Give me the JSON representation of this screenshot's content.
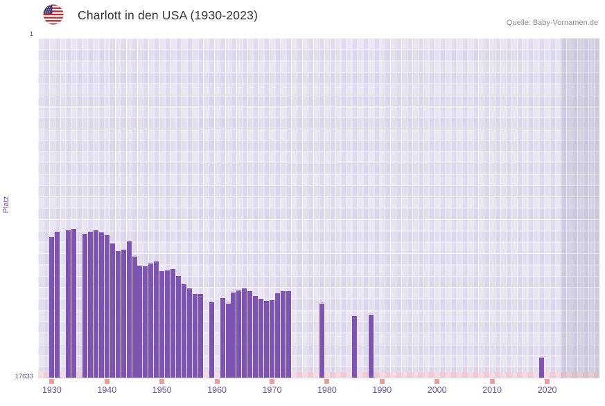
{
  "header": {
    "title": "Charlott in den USA (1930-2023)",
    "source": "Quelle: Baby-Vornamen.de",
    "flag_icon": "us-flag-icon"
  },
  "chart_data": {
    "type": "bar",
    "title": "Charlott in den USA (1930-2023)",
    "xlabel": "",
    "ylabel": "Platz",
    "y_axis": {
      "min": 1,
      "max": 17633,
      "top_label": "1",
      "bottom_label": "17633",
      "inverted": true
    },
    "x_ticks": [
      1930,
      1940,
      1950,
      1960,
      1970,
      1980,
      1990,
      2000,
      2010,
      2020
    ],
    "x_range_years": [
      1930,
      2023
    ],
    "x_domain": [
      1927.5,
      2029.5
    ],
    "no_data_band": {
      "start_year": 2022.5,
      "end_year": 2029.5
    },
    "grid": true,
    "legend": "none",
    "bars": [
      {
        "year": 1930,
        "rank": 10350
      },
      {
        "year": 1931,
        "rank": 10050
      },
      {
        "year": 1933,
        "rank": 9980
      },
      {
        "year": 1934,
        "rank": 9900
      },
      {
        "year": 1936,
        "rank": 10150
      },
      {
        "year": 1937,
        "rank": 10050
      },
      {
        "year": 1938,
        "rank": 10000
      },
      {
        "year": 1939,
        "rank": 10100
      },
      {
        "year": 1940,
        "rank": 10250
      },
      {
        "year": 1941,
        "rank": 10650
      },
      {
        "year": 1942,
        "rank": 11050
      },
      {
        "year": 1943,
        "rank": 11000
      },
      {
        "year": 1944,
        "rank": 10550
      },
      {
        "year": 1945,
        "rank": 11350
      },
      {
        "year": 1946,
        "rank": 11800
      },
      {
        "year": 1947,
        "rank": 11850
      },
      {
        "year": 1948,
        "rank": 11700
      },
      {
        "year": 1949,
        "rank": 11600
      },
      {
        "year": 1950,
        "rank": 12100
      },
      {
        "year": 1951,
        "rank": 12050
      },
      {
        "year": 1952,
        "rank": 12000
      },
      {
        "year": 1953,
        "rank": 12350
      },
      {
        "year": 1954,
        "rank": 12800
      },
      {
        "year": 1955,
        "rank": 13000
      },
      {
        "year": 1956,
        "rank": 13300
      },
      {
        "year": 1957,
        "rank": 13300
      },
      {
        "year": 1959,
        "rank": 13700
      },
      {
        "year": 1961,
        "rank": 13500
      },
      {
        "year": 1962,
        "rank": 13800
      },
      {
        "year": 1963,
        "rank": 13200
      },
      {
        "year": 1964,
        "rank": 13100
      },
      {
        "year": 1965,
        "rank": 13000
      },
      {
        "year": 1966,
        "rank": 13150
      },
      {
        "year": 1967,
        "rank": 13400
      },
      {
        "year": 1968,
        "rank": 13550
      },
      {
        "year": 1969,
        "rank": 13650
      },
      {
        "year": 1970,
        "rank": 13600
      },
      {
        "year": 1971,
        "rank": 13250
      },
      {
        "year": 1972,
        "rank": 13150
      },
      {
        "year": 1973,
        "rank": 13150
      },
      {
        "year": 1979,
        "rank": 13800
      },
      {
        "year": 1985,
        "rank": 14450
      },
      {
        "year": 1988,
        "rank": 14350
      },
      {
        "year": 2019,
        "rank": 16600
      }
    ],
    "colors": {
      "bar": "#7d54b4",
      "axis_text": "#6a51a3",
      "y_tick_text": "#55557d",
      "tick_square": "#eb9d97",
      "plot_bg": "#e9e5f2",
      "grid_line": "#ffffff",
      "strip_pink": "#f6dbe2",
      "strip_pink_alt": "#f1ccd7",
      "future_band": "rgba(83,80,106,0.11)",
      "title_text": "#33333f",
      "source_text": "#8b8b98"
    }
  }
}
